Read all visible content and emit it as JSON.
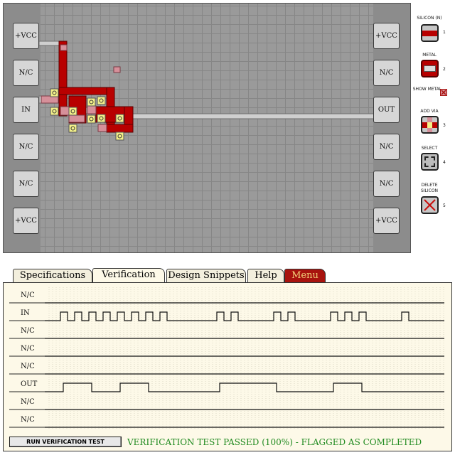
{
  "pads": {
    "left": [
      "+VCC",
      "N/C",
      "IN",
      "N/C",
      "N/C",
      "+VCC"
    ],
    "right": [
      "+VCC",
      "N/C",
      "OUT",
      "N/C",
      "N/C",
      "+VCC"
    ]
  },
  "tools": [
    {
      "name": "silicon-tool",
      "label": "SILICON (N)",
      "key": "1"
    },
    {
      "name": "metal-tool",
      "label": "METAL",
      "key": "2"
    },
    {
      "name": "show-metal-toggle",
      "label": "SHOW METAL",
      "key": ""
    },
    {
      "name": "add-via-tool",
      "label": "ADD VIA",
      "key": "3"
    },
    {
      "name": "select-tool",
      "label": "SELECT",
      "key": "4"
    },
    {
      "name": "delete-silicon-tool",
      "label": "DELETE SILICON",
      "key": "5"
    }
  ],
  "tabs": [
    "Specifications",
    "Verification",
    "Design Snippets",
    "Help",
    "Menu"
  ],
  "active_tab": "Verification",
  "signals": [
    {
      "label": "N/C",
      "edges": []
    },
    {
      "label": "IN",
      "edges": [
        [
          84,
          94
        ],
        [
          104,
          114
        ],
        [
          124,
          134
        ],
        [
          144,
          154
        ],
        [
          164,
          174
        ],
        [
          184,
          194
        ],
        [
          204,
          214
        ],
        [
          224,
          234
        ],
        [
          304,
          314
        ],
        [
          324,
          334
        ],
        [
          384,
          394
        ],
        [
          404,
          414
        ],
        [
          464,
          474
        ],
        [
          484,
          494
        ],
        [
          504,
          514
        ],
        [
          564,
          574
        ]
      ]
    },
    {
      "label": "N/C",
      "edges": []
    },
    {
      "label": "N/C",
      "edges": []
    },
    {
      "label": "N/C",
      "edges": []
    },
    {
      "label": "OUT",
      "edges": [
        [
          88,
          128
        ],
        [
          168,
          208
        ],
        [
          308,
          388
        ],
        [
          468,
          508
        ]
      ]
    },
    {
      "label": "N/C",
      "edges": []
    },
    {
      "label": "N/C",
      "edges": []
    }
  ],
  "run_button": "RUN VERIFICATION TEST",
  "status": "VERIFICATION TEST PASSED (100%) - FLAGGED AS COMPLETED",
  "colors": {
    "silicon_n": "#b80000",
    "silicon_p": "#d6909a",
    "metal": "#cfcfcf",
    "via": "#f3f08a",
    "status": "#1f8a1f",
    "menu_tab": "#a8130e"
  }
}
